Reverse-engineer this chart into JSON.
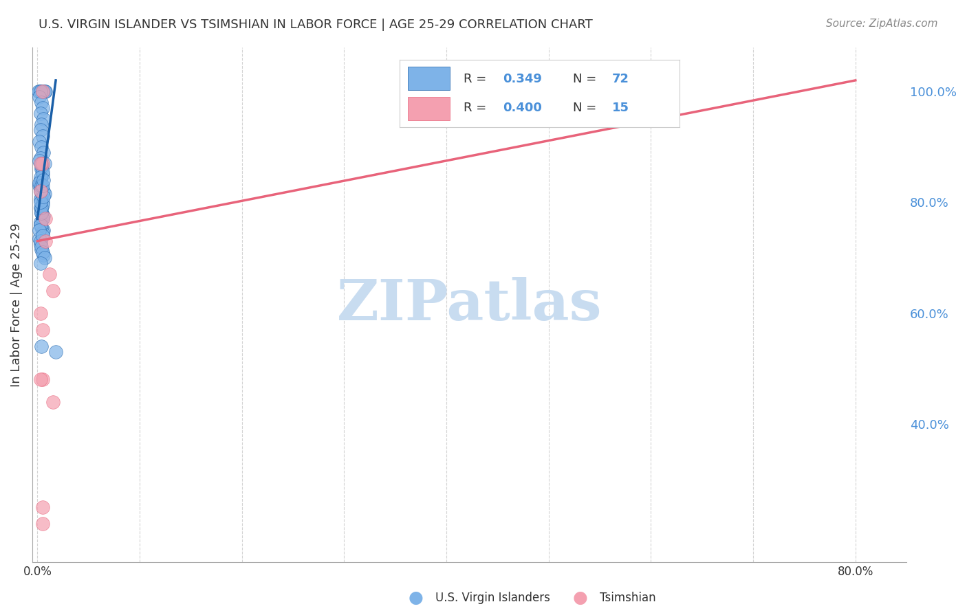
{
  "title": "U.S. VIRGIN ISLANDER VS TSIMSHIAN IN LABOR FORCE | AGE 25-29 CORRELATION CHART",
  "source_text": "Source: ZipAtlas.com",
  "ylabel": "In Labor Force | Age 25-29",
  "xlabel_bottom": "",
  "xmin": -0.005,
  "xmax": 0.85,
  "ymin": 0.15,
  "ymax": 1.08,
  "blue_R": 0.349,
  "blue_N": 72,
  "pink_R": 0.4,
  "pink_N": 15,
  "blue_color": "#7EB3E8",
  "pink_color": "#F4A0B0",
  "blue_line_color": "#1A5FA8",
  "pink_line_color": "#E8637A",
  "axis_label_color": "#4A90D9",
  "right_tick_color": "#4A90D9",
  "grid_color": "#C8C8C8",
  "background_color": "#FFFFFF",
  "title_color": "#333333",
  "watermark_color": "#C8DCF0",
  "watermark_text": "ZIPatlas",
  "xticks": [
    0.0,
    0.1,
    0.2,
    0.3,
    0.4,
    0.5,
    0.6,
    0.7,
    0.8
  ],
  "xtick_labels": [
    "0.0%",
    "",
    "",
    "",
    "",
    "",
    "",
    "",
    "80.0%"
  ],
  "yticks_right": [
    0.4,
    0.6,
    0.8,
    1.0
  ],
  "ytick_labels_right": [
    "40.0%",
    "60.0%",
    "80.0%",
    "100.0%"
  ],
  "blue_scatter_x": [
    0.005,
    0.003,
    0.002,
    0.004,
    0.006,
    0.001,
    0.008,
    0.007,
    0.003,
    0.002,
    0.004,
    0.005,
    0.003,
    0.006,
    0.004,
    0.003,
    0.005,
    0.002,
    0.004,
    0.006,
    0.003,
    0.007,
    0.004,
    0.005,
    0.003,
    0.002,
    0.006,
    0.004,
    0.005,
    0.003,
    0.004,
    0.005,
    0.003,
    0.006,
    0.002,
    0.004,
    0.005,
    0.003,
    0.002,
    0.004,
    0.007,
    0.003,
    0.005,
    0.004,
    0.006,
    0.003,
    0.004,
    0.005,
    0.002,
    0.003,
    0.004,
    0.006,
    0.003,
    0.004,
    0.005,
    0.003,
    0.002,
    0.004,
    0.003,
    0.005,
    0.004,
    0.003,
    0.006,
    0.004,
    0.005,
    0.007,
    0.003,
    0.004,
    0.005,
    0.006,
    0.004,
    0.018
  ],
  "blue_scatter_y": [
    1.0,
    1.0,
    1.0,
    1.0,
    1.0,
    1.0,
    1.0,
    1.0,
    1.0,
    0.99,
    0.98,
    0.97,
    0.96,
    0.95,
    0.94,
    0.93,
    0.92,
    0.91,
    0.9,
    0.89,
    0.88,
    0.87,
    0.86,
    0.85,
    0.84,
    0.83,
    0.82,
    0.81,
    0.8,
    0.79,
    0.78,
    0.77,
    0.76,
    0.75,
    0.875,
    0.865,
    0.855,
    0.845,
    0.835,
    0.825,
    0.815,
    0.805,
    0.795,
    0.785,
    0.775,
    0.765,
    0.755,
    0.745,
    0.735,
    0.725,
    0.715,
    0.705,
    0.82,
    0.83,
    0.77,
    0.76,
    0.75,
    0.78,
    0.73,
    0.74,
    0.79,
    0.8,
    0.81,
    0.72,
    0.71,
    0.7,
    0.69,
    0.87,
    0.83,
    0.84,
    0.54,
    0.53
  ],
  "pink_scatter_x": [
    0.005,
    0.005,
    0.003,
    0.003,
    0.008,
    0.008,
    0.012,
    0.015,
    0.003,
    0.005,
    0.005,
    0.003,
    0.015,
    0.005,
    0.005
  ],
  "pink_scatter_y": [
    1.0,
    0.87,
    0.87,
    0.82,
    0.77,
    0.73,
    0.67,
    0.64,
    0.6,
    0.57,
    0.48,
    0.48,
    0.44,
    0.25,
    0.22
  ],
  "blue_line_x0": 0.0,
  "blue_line_x1": 0.018,
  "blue_line_y0": 0.77,
  "blue_line_y1": 1.02,
  "pink_line_x0": 0.0,
  "pink_line_x1": 0.8,
  "pink_line_y0": 0.73,
  "pink_line_y1": 1.02
}
